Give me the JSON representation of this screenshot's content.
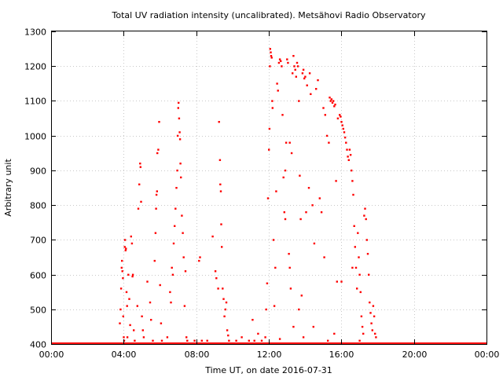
{
  "chart_data": {
    "type": "scatter",
    "title": "Total UV radiation intensity (uncalibrated). Metsähovi Radio Observatory",
    "xlabel": "Time UT, on date 2016-07-31",
    "ylabel": "Arbitrary unit",
    "xlim": [
      0,
      24
    ],
    "ylim": [
      400,
      1300
    ],
    "x_unit": "hours UT",
    "grid": true,
    "marker_color": "#ff0000",
    "x_ticks": [
      {
        "value": 0,
        "label": "00:00"
      },
      {
        "value": 4,
        "label": "04:00"
      },
      {
        "value": 8,
        "label": "08:00"
      },
      {
        "value": 12,
        "label": "12:00"
      },
      {
        "value": 16,
        "label": "16:00"
      },
      {
        "value": 20,
        "label": "20:00"
      },
      {
        "value": 24,
        "label": "00:00"
      }
    ],
    "y_ticks": [
      {
        "value": 400,
        "label": "400"
      },
      {
        "value": 500,
        "label": "500"
      },
      {
        "value": 600,
        "label": "600"
      },
      {
        "value": 700,
        "label": "700"
      },
      {
        "value": 800,
        "label": "800"
      },
      {
        "value": 900,
        "label": "900"
      },
      {
        "value": 1000,
        "label": "1000"
      },
      {
        "value": 1100,
        "label": "1100"
      },
      {
        "value": 1200,
        "label": "1200"
      },
      {
        "value": 1300,
        "label": "1300"
      }
    ],
    "baseline": {
      "value": 400,
      "from": 0,
      "to": 24
    },
    "points": [
      [
        3.78,
        460
      ],
      [
        3.82,
        500
      ],
      [
        3.85,
        560
      ],
      [
        3.88,
        620
      ],
      [
        3.9,
        640
      ],
      [
        3.92,
        610
      ],
      [
        3.95,
        590
      ],
      [
        3.97,
        480
      ],
      [
        4.0,
        420
      ],
      [
        4.02,
        410
      ],
      [
        4.05,
        680
      ],
      [
        4.07,
        700
      ],
      [
        4.1,
        670
      ],
      [
        4.12,
        675
      ],
      [
        4.15,
        550
      ],
      [
        4.18,
        510
      ],
      [
        4.2,
        420
      ],
      [
        4.25,
        600
      ],
      [
        4.3,
        530
      ],
      [
        4.35,
        455
      ],
      [
        4.4,
        710
      ],
      [
        4.45,
        690
      ],
      [
        4.48,
        595
      ],
      [
        4.5,
        600
      ],
      [
        4.55,
        440
      ],
      [
        4.6,
        410
      ],
      [
        4.75,
        510
      ],
      [
        4.8,
        790
      ],
      [
        4.85,
        860
      ],
      [
        4.9,
        920
      ],
      [
        4.92,
        910
      ],
      [
        4.95,
        810
      ],
      [
        5.0,
        480
      ],
      [
        5.05,
        440
      ],
      [
        5.1,
        420
      ],
      [
        5.3,
        580
      ],
      [
        5.45,
        520
      ],
      [
        5.5,
        470
      ],
      [
        5.6,
        410
      ],
      [
        5.7,
        640
      ],
      [
        5.75,
        720
      ],
      [
        5.78,
        790
      ],
      [
        5.8,
        830
      ],
      [
        5.83,
        840
      ],
      [
        5.85,
        950
      ],
      [
        5.9,
        960
      ],
      [
        5.95,
        1040
      ],
      [
        6.0,
        570
      ],
      [
        6.05,
        460
      ],
      [
        6.1,
        410
      ],
      [
        6.4,
        420
      ],
      [
        6.55,
        550
      ],
      [
        6.6,
        520
      ],
      [
        6.65,
        620
      ],
      [
        6.7,
        600
      ],
      [
        6.75,
        690
      ],
      [
        6.8,
        740
      ],
      [
        6.85,
        790
      ],
      [
        6.9,
        850
      ],
      [
        6.95,
        900
      ],
      [
        6.97,
        1000
      ],
      [
        7.0,
        1080
      ],
      [
        7.02,
        1095
      ],
      [
        7.05,
        1050
      ],
      [
        7.08,
        1010
      ],
      [
        7.1,
        990
      ],
      [
        7.12,
        920
      ],
      [
        7.15,
        880
      ],
      [
        7.2,
        770
      ],
      [
        7.25,
        720
      ],
      [
        7.3,
        650
      ],
      [
        7.35,
        510
      ],
      [
        7.4,
        610
      ],
      [
        7.45,
        420
      ],
      [
        7.5,
        410
      ],
      [
        7.9,
        410
      ],
      [
        8.15,
        640
      ],
      [
        8.2,
        650
      ],
      [
        8.3,
        410
      ],
      [
        8.6,
        410
      ],
      [
        8.9,
        710
      ],
      [
        9.05,
        610
      ],
      [
        9.1,
        590
      ],
      [
        9.2,
        560
      ],
      [
        9.25,
        1040
      ],
      [
        9.3,
        930
      ],
      [
        9.32,
        860
      ],
      [
        9.35,
        840
      ],
      [
        9.37,
        745
      ],
      [
        9.4,
        680
      ],
      [
        9.45,
        560
      ],
      [
        9.5,
        530
      ],
      [
        9.55,
        480
      ],
      [
        9.6,
        500
      ],
      [
        9.65,
        520
      ],
      [
        9.7,
        440
      ],
      [
        9.75,
        425
      ],
      [
        9.8,
        410
      ],
      [
        10.2,
        410
      ],
      [
        10.5,
        420
      ],
      [
        10.9,
        410
      ],
      [
        11.1,
        470
      ],
      [
        11.2,
        410
      ],
      [
        11.4,
        430
      ],
      [
        11.6,
        410
      ],
      [
        11.8,
        420
      ],
      [
        11.85,
        500
      ],
      [
        11.9,
        575
      ],
      [
        11.95,
        820
      ],
      [
        12.0,
        960
      ],
      [
        12.03,
        1020
      ],
      [
        12.05,
        1200
      ],
      [
        12.07,
        1250
      ],
      [
        12.1,
        1240
      ],
      [
        12.12,
        1230
      ],
      [
        12.15,
        1225
      ],
      [
        12.18,
        1100
      ],
      [
        12.2,
        1080
      ],
      [
        12.25,
        700
      ],
      [
        12.3,
        510
      ],
      [
        12.35,
        620
      ],
      [
        12.4,
        840
      ],
      [
        12.45,
        1150
      ],
      [
        12.5,
        1130
      ],
      [
        12.55,
        1210
      ],
      [
        12.6,
        1220
      ],
      [
        12.65,
        1215
      ],
      [
        12.7,
        1200
      ],
      [
        12.75,
        1060
      ],
      [
        12.8,
        880
      ],
      [
        12.85,
        780
      ],
      [
        12.9,
        760
      ],
      [
        12.95,
        980
      ],
      [
        13.0,
        1220
      ],
      [
        13.05,
        1210
      ],
      [
        13.1,
        660
      ],
      [
        13.15,
        620
      ],
      [
        13.2,
        560
      ],
      [
        13.25,
        950
      ],
      [
        13.3,
        1180
      ],
      [
        13.35,
        1230
      ],
      [
        13.4,
        1200
      ],
      [
        13.45,
        1190
      ],
      [
        13.5,
        1170
      ],
      [
        13.55,
        1210
      ],
      [
        13.6,
        1200
      ],
      [
        13.65,
        1100
      ],
      [
        13.7,
        885
      ],
      [
        13.75,
        760
      ],
      [
        13.8,
        540
      ],
      [
        13.85,
        1180
      ],
      [
        13.9,
        1190
      ],
      [
        13.95,
        1165
      ],
      [
        14.0,
        1170
      ],
      [
        14.1,
        1145
      ],
      [
        14.2,
        850
      ],
      [
        14.25,
        1180
      ],
      [
        14.3,
        1120
      ],
      [
        14.4,
        800
      ],
      [
        14.5,
        690
      ],
      [
        14.6,
        1135
      ],
      [
        14.7,
        1160
      ],
      [
        14.8,
        820
      ],
      [
        14.9,
        780
      ],
      [
        15.0,
        1080
      ],
      [
        15.1,
        1060
      ],
      [
        15.2,
        1000
      ],
      [
        15.3,
        980
      ],
      [
        15.35,
        1110
      ],
      [
        15.4,
        1100
      ],
      [
        15.45,
        1105
      ],
      [
        15.5,
        1095
      ],
      [
        15.55,
        1100
      ],
      [
        15.6,
        1085
      ],
      [
        15.65,
        1090
      ],
      [
        15.7,
        870
      ],
      [
        15.75,
        580
      ],
      [
        15.8,
        1050
      ],
      [
        15.9,
        1060
      ],
      [
        15.95,
        1055
      ],
      [
        16.0,
        1040
      ],
      [
        16.05,
        1030
      ],
      [
        16.1,
        1020
      ],
      [
        16.15,
        1010
      ],
      [
        16.2,
        995
      ],
      [
        16.25,
        980
      ],
      [
        16.3,
        960
      ],
      [
        16.35,
        940
      ],
      [
        16.4,
        930
      ],
      [
        16.45,
        960
      ],
      [
        16.5,
        945
      ],
      [
        16.55,
        900
      ],
      [
        16.6,
        870
      ],
      [
        16.65,
        830
      ],
      [
        16.7,
        740
      ],
      [
        16.75,
        680
      ],
      [
        16.8,
        620
      ],
      [
        16.85,
        560
      ],
      [
        16.9,
        720
      ],
      [
        16.95,
        650
      ],
      [
        17.0,
        600
      ],
      [
        17.05,
        550
      ],
      [
        17.1,
        480
      ],
      [
        17.15,
        450
      ],
      [
        17.2,
        430
      ],
      [
        17.25,
        770
      ],
      [
        17.3,
        790
      ],
      [
        17.35,
        760
      ],
      [
        17.4,
        700
      ],
      [
        17.45,
        660
      ],
      [
        17.5,
        600
      ],
      [
        17.55,
        520
      ],
      [
        17.6,
        490
      ],
      [
        17.65,
        460
      ],
      [
        17.7,
        440
      ],
      [
        17.75,
        510
      ],
      [
        17.8,
        480
      ],
      [
        17.85,
        430
      ],
      [
        17.9,
        420
      ],
      [
        13.15,
        980
      ],
      [
        12.9,
        900
      ],
      [
        13.35,
        450
      ],
      [
        13.65,
        500
      ],
      [
        14.05,
        780
      ],
      [
        15.05,
        650
      ],
      [
        15.25,
        410
      ],
      [
        16.0,
        580
      ],
      [
        16.6,
        620
      ],
      [
        17.0,
        410
      ],
      [
        14.45,
        450
      ],
      [
        12.6,
        415
      ],
      [
        13.9,
        420
      ],
      [
        15.6,
        430
      ]
    ]
  }
}
